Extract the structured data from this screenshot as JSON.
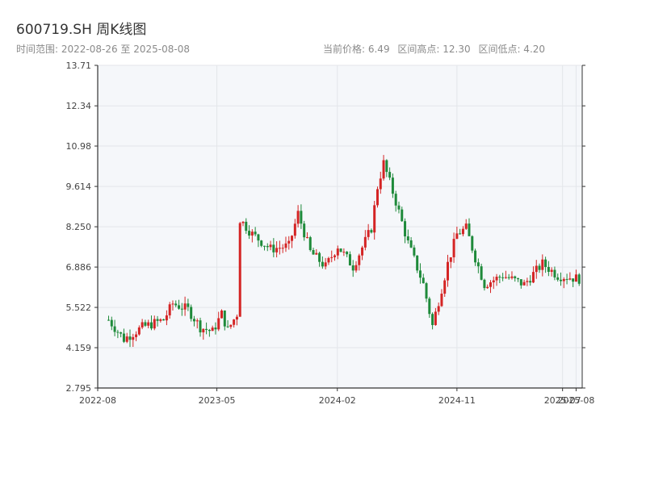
{
  "header": {
    "title": "600719.SH 周K线图",
    "range_label": "时间范围: 2022-08-26 至 2025-08-08",
    "current_price": "当前价格: 6.49",
    "high_label": "区间高点: 12.30",
    "low_label": "区间低点: 4.20"
  },
  "colors": {
    "up": "#d42424",
    "down": "#1e8a3a",
    "plot_bg": "#f5f7fa",
    "grid": "#e3e6ea",
    "axis": "#333333"
  },
  "chart_data": {
    "type": "candlestick",
    "title": "600719.SH 周K线图",
    "ylim": [
      2.795,
      13.71
    ],
    "y_ticks": [
      "2.795",
      "4.159",
      "5.522",
      "6.886",
      "8.250",
      "9.614",
      "10.98",
      "12.34",
      "13.71"
    ],
    "x_ticks": [
      {
        "label": "2022-08",
        "date": "2022-08-01"
      },
      {
        "label": "2023-05",
        "date": "2023-05-01"
      },
      {
        "label": "2024-02",
        "date": "2024-02-01"
      },
      {
        "label": "2024-11",
        "date": "2024-11-01"
      },
      {
        "label": "2025-07",
        "date": "2025-07-01"
      },
      {
        "label": "2025-08",
        "date": "2025-08-01"
      }
    ],
    "xlim": [
      "2022-08-01",
      "2025-08-15"
    ],
    "grid": true,
    "series_anchors": [
      {
        "date": "2022-08-26",
        "close": 5.1
      },
      {
        "date": "2022-09-30",
        "close": 4.45
      },
      {
        "date": "2022-11-11",
        "close": 4.85
      },
      {
        "date": "2022-12-30",
        "close": 5.1
      },
      {
        "date": "2023-01-20",
        "close": 5.65
      },
      {
        "date": "2023-02-24",
        "close": 5.45
      },
      {
        "date": "2023-03-24",
        "close": 4.85
      },
      {
        "date": "2023-04-21",
        "close": 4.7
      },
      {
        "date": "2023-05-12",
        "close": 5.3
      },
      {
        "date": "2023-05-26",
        "close": 4.75
      },
      {
        "date": "2023-06-16",
        "close": 5.3
      },
      {
        "date": "2023-06-23",
        "close": 8.5
      },
      {
        "date": "2023-07-21",
        "close": 8.0
      },
      {
        "date": "2023-09-01",
        "close": 7.5
      },
      {
        "date": "2023-10-13",
        "close": 7.6
      },
      {
        "date": "2023-11-03",
        "close": 8.7
      },
      {
        "date": "2023-12-01",
        "close": 7.4
      },
      {
        "date": "2024-01-05",
        "close": 6.9
      },
      {
        "date": "2024-02-02",
        "close": 7.6
      },
      {
        "date": "2024-03-08",
        "close": 6.9
      },
      {
        "date": "2024-04-19",
        "close": 8.2
      },
      {
        "date": "2024-05-03",
        "close": 9.6
      },
      {
        "date": "2024-05-17",
        "close": 10.4
      },
      {
        "date": "2024-06-14",
        "close": 9.1
      },
      {
        "date": "2024-07-12",
        "close": 7.7
      },
      {
        "date": "2024-08-16",
        "close": 6.3
      },
      {
        "date": "2024-09-06",
        "close": 4.9
      },
      {
        "date": "2024-10-11",
        "close": 7.0
      },
      {
        "date": "2024-11-01",
        "close": 8.0
      },
      {
        "date": "2024-11-22",
        "close": 8.2
      },
      {
        "date": "2024-12-13",
        "close": 7.2
      },
      {
        "date": "2025-01-03",
        "close": 6.3
      },
      {
        "date": "2025-02-14",
        "close": 6.6
      },
      {
        "date": "2025-04-04",
        "close": 6.3
      },
      {
        "date": "2025-05-16",
        "close": 7.0
      },
      {
        "date": "2025-06-20",
        "close": 6.6
      },
      {
        "date": "2025-08-08",
        "close": 6.49
      }
    ]
  }
}
